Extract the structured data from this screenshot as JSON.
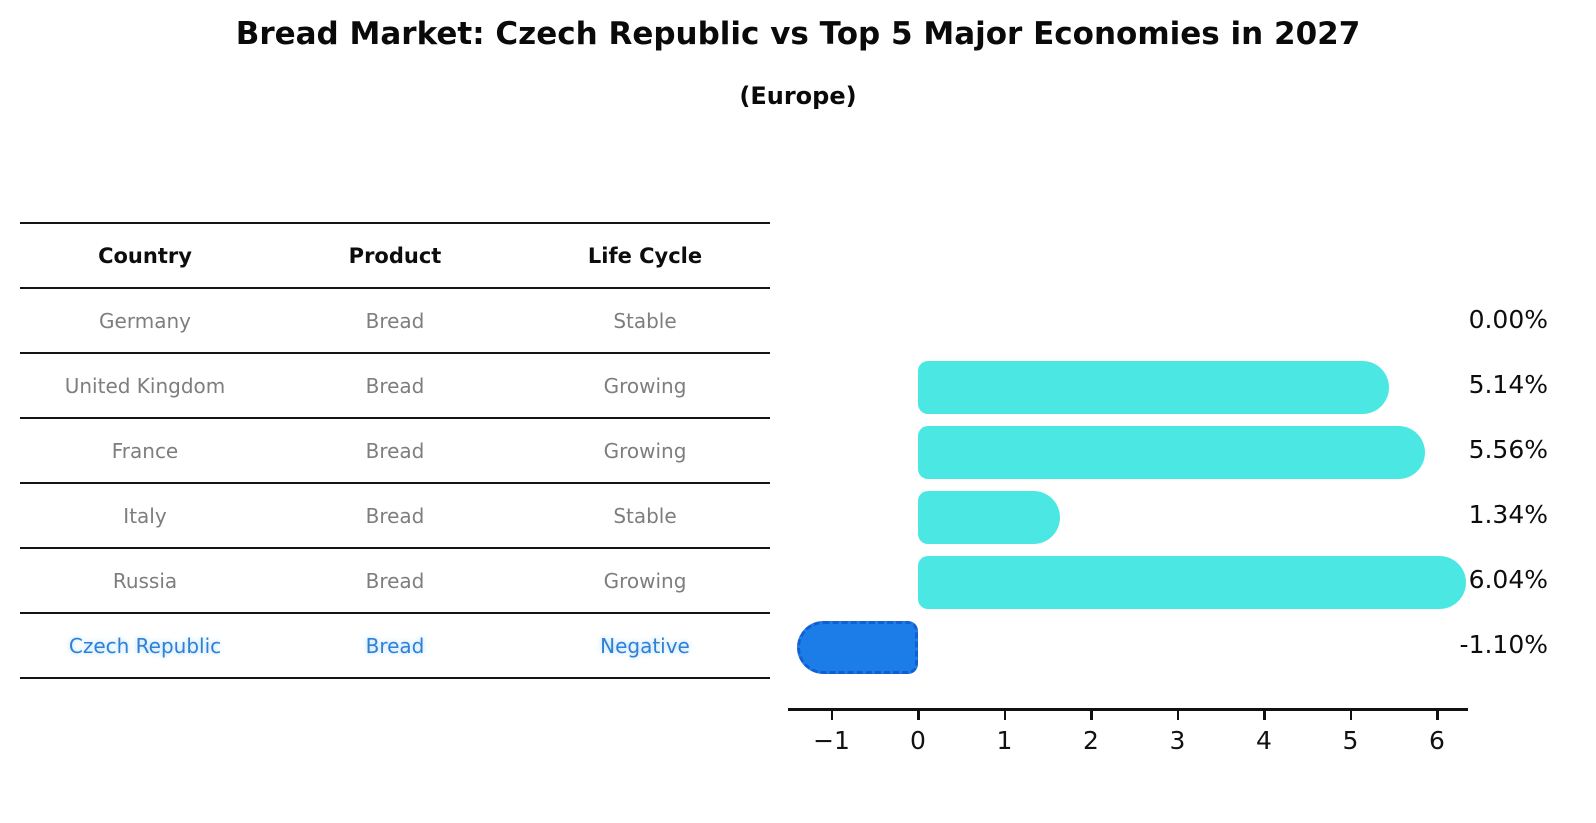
{
  "header": {
    "title": "Bread Market: Czech Republic vs Top 5 Major Economies in 2027",
    "subtitle": "(Europe)"
  },
  "table": {
    "columns": [
      "Country",
      "Product",
      "Life Cycle"
    ],
    "rows": [
      {
        "country": "Germany",
        "product": "Bread",
        "life_cycle": "Stable",
        "highlight": false
      },
      {
        "country": "United Kingdom",
        "product": "Bread",
        "life_cycle": "Growing",
        "highlight": false
      },
      {
        "country": "France",
        "product": "Bread",
        "life_cycle": "Growing",
        "highlight": false
      },
      {
        "country": "Italy",
        "product": "Bread",
        "life_cycle": "Stable",
        "highlight": false
      },
      {
        "country": "Russia",
        "product": "Bread",
        "life_cycle": "Growing",
        "highlight": false
      },
      {
        "country": "Czech Republic",
        "product": "Bread",
        "life_cycle": "Negative",
        "highlight": true
      }
    ]
  },
  "chart_data": {
    "type": "bar",
    "orientation": "horizontal",
    "title": "Bread Market: Czech Republic vs Top 5 Major Economies in 2027",
    "subtitle": "(Europe)",
    "categories": [
      "Germany",
      "United Kingdom",
      "France",
      "Italy",
      "Russia",
      "Czech Republic"
    ],
    "values": [
      0.0,
      5.14,
      5.56,
      1.34,
      6.04,
      -1.1
    ],
    "value_labels": [
      "0.00%",
      "5.14%",
      "5.56%",
      "1.34%",
      "6.04%",
      "-1.10%"
    ],
    "x_ticks": [
      -1,
      0,
      1,
      2,
      3,
      4,
      5,
      6
    ],
    "x_tick_labels": [
      "−1",
      "0",
      "1",
      "2",
      "3",
      "4",
      "5",
      "6"
    ],
    "xlim": [
      -1.46,
      6.4
    ],
    "ylabel": "",
    "xlabel": "",
    "grid": false,
    "legend_position": "none",
    "bar_color": "#4be8e3",
    "highlight_bar_color": "#1c7de8",
    "highlight_bar_border_color": "#135fd1",
    "highlight_index": 5,
    "highlight_text_color": "#2e81d6"
  }
}
